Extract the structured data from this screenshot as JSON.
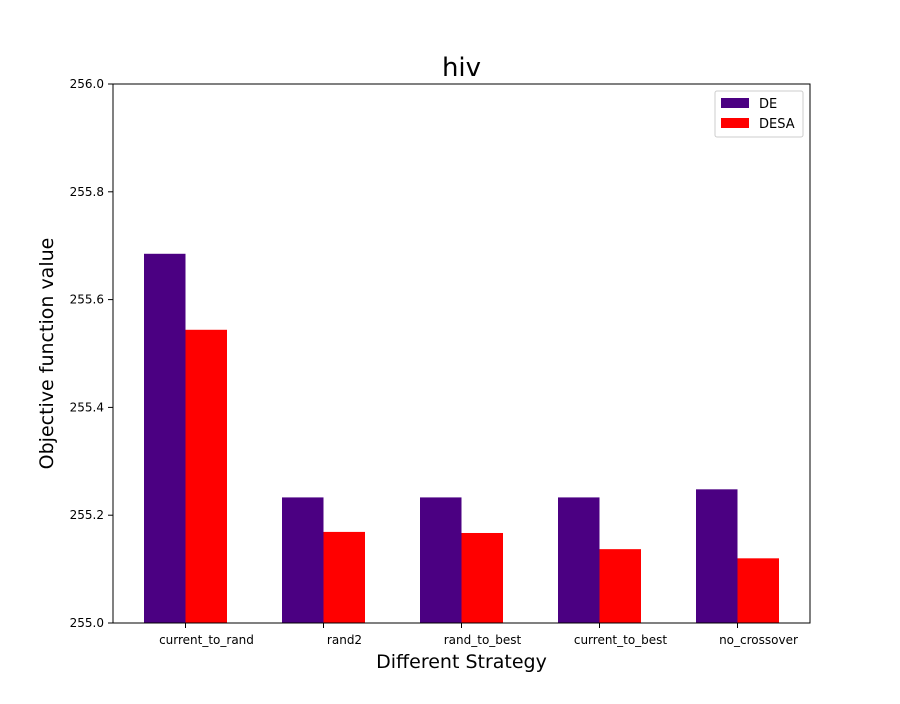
{
  "chart_data": {
    "type": "bar",
    "title": "hiv",
    "xlabel": "Different Strategy",
    "ylabel": "Objective function value",
    "categories": [
      "current_to_rand",
      "rand2",
      "rand_to_best",
      "current_to_best",
      "no_crossover"
    ],
    "series": [
      {
        "name": "DE",
        "color": "#4b0082",
        "values": [
          255.685,
          255.233,
          255.233,
          255.233,
          255.248
        ]
      },
      {
        "name": "DESA",
        "color": "#ff0000",
        "values": [
          255.544,
          255.169,
          255.167,
          255.137,
          255.12
        ]
      }
    ],
    "ylim": [
      255.0,
      256.0
    ],
    "yticks": [
      "255.0",
      "255.2",
      "255.4",
      "255.6",
      "255.8",
      "256.0"
    ],
    "grid": false,
    "legend_position": "top-right"
  }
}
